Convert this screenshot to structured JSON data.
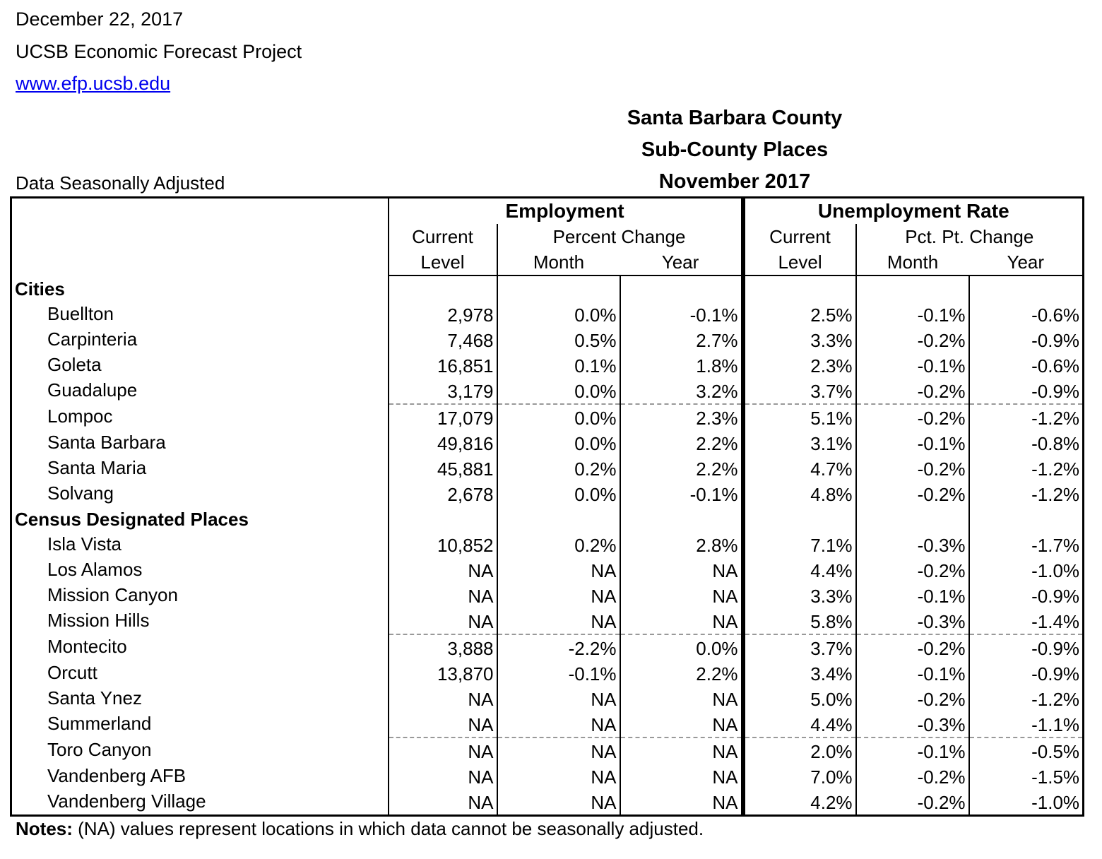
{
  "header": {
    "date": "December 22, 2017",
    "org": "UCSB Economic Forecast Project",
    "url": "www.efp.ucsb.edu",
    "title1": "Santa Barbara County",
    "title2": "Sub-County Places",
    "title3": "November 2017",
    "seasonal": "Data Seasonally Adjusted"
  },
  "columns": {
    "employment": "Employment",
    "unemployment": "Unemployment Rate",
    "current": "Current",
    "level": "Level",
    "percent_change": "Percent Change",
    "pct_pt_change": "Pct. Pt. Change",
    "month": "Month",
    "year": "Year"
  },
  "sections": {
    "cities": "Cities",
    "cdp": "Census Designated Places"
  },
  "cities": [
    {
      "name": "Buellton",
      "emp": "2,978",
      "emp_m": "0.0%",
      "emp_y": "-0.1%",
      "ur": "2.5%",
      "ur_m": "-0.1%",
      "ur_y": "-0.6%"
    },
    {
      "name": "Carpinteria",
      "emp": "7,468",
      "emp_m": "0.5%",
      "emp_y": "2.7%",
      "ur": "3.3%",
      "ur_m": "-0.2%",
      "ur_y": "-0.9%"
    },
    {
      "name": "Goleta",
      "emp": "16,851",
      "emp_m": "0.1%",
      "emp_y": "1.8%",
      "ur": "2.3%",
      "ur_m": "-0.1%",
      "ur_y": "-0.6%"
    },
    {
      "name": "Guadalupe",
      "emp": "3,179",
      "emp_m": "0.0%",
      "emp_y": "3.2%",
      "ur": "3.7%",
      "ur_m": "-0.2%",
      "ur_y": "-0.9%"
    },
    {
      "name": "Lompoc",
      "emp": "17,079",
      "emp_m": "0.0%",
      "emp_y": "2.3%",
      "ur": "5.1%",
      "ur_m": "-0.2%",
      "ur_y": "-1.2%"
    },
    {
      "name": "Santa Barbara",
      "emp": "49,816",
      "emp_m": "0.0%",
      "emp_y": "2.2%",
      "ur": "3.1%",
      "ur_m": "-0.1%",
      "ur_y": "-0.8%"
    },
    {
      "name": "Santa Maria",
      "emp": "45,881",
      "emp_m": "0.2%",
      "emp_y": "2.2%",
      "ur": "4.7%",
      "ur_m": "-0.2%",
      "ur_y": "-1.2%"
    },
    {
      "name": "Solvang",
      "emp": "2,678",
      "emp_m": "0.0%",
      "emp_y": "-0.1%",
      "ur": "4.8%",
      "ur_m": "-0.2%",
      "ur_y": "-1.2%"
    }
  ],
  "cdp": [
    {
      "name": "Isla Vista",
      "emp": "10,852",
      "emp_m": "0.2%",
      "emp_y": "2.8%",
      "ur": "7.1%",
      "ur_m": "-0.3%",
      "ur_y": "-1.7%"
    },
    {
      "name": "Los Alamos",
      "emp": "NA",
      "emp_m": "NA",
      "emp_y": "NA",
      "ur": "4.4%",
      "ur_m": "-0.2%",
      "ur_y": "-1.0%"
    },
    {
      "name": "Mission Canyon",
      "emp": "NA",
      "emp_m": "NA",
      "emp_y": "NA",
      "ur": "3.3%",
      "ur_m": "-0.1%",
      "ur_y": "-0.9%"
    },
    {
      "name": "Mission Hills",
      "emp": "NA",
      "emp_m": "NA",
      "emp_y": "NA",
      "ur": "5.8%",
      "ur_m": "-0.3%",
      "ur_y": "-1.4%"
    },
    {
      "name": "Montecito",
      "emp": "3,888",
      "emp_m": "-2.2%",
      "emp_y": "0.0%",
      "ur": "3.7%",
      "ur_m": "-0.2%",
      "ur_y": "-0.9%"
    },
    {
      "name": "Orcutt",
      "emp": "13,870",
      "emp_m": "-0.1%",
      "emp_y": "2.2%",
      "ur": "3.4%",
      "ur_m": "-0.1%",
      "ur_y": "-0.9%"
    },
    {
      "name": "Santa Ynez",
      "emp": "NA",
      "emp_m": "NA",
      "emp_y": "NA",
      "ur": "5.0%",
      "ur_m": "-0.2%",
      "ur_y": "-1.2%"
    },
    {
      "name": "Summerland",
      "emp": "NA",
      "emp_m": "NA",
      "emp_y": "NA",
      "ur": "4.4%",
      "ur_m": "-0.3%",
      "ur_y": "-1.1%"
    },
    {
      "name": "Toro Canyon",
      "emp": "NA",
      "emp_m": "NA",
      "emp_y": "NA",
      "ur": "2.0%",
      "ur_m": "-0.1%",
      "ur_y": "-0.5%"
    },
    {
      "name": "Vandenberg AFB",
      "emp": "NA",
      "emp_m": "NA",
      "emp_y": "NA",
      "ur": "7.0%",
      "ur_m": "-0.2%",
      "ur_y": "-1.5%"
    },
    {
      "name": "Vandenberg Village",
      "emp": "NA",
      "emp_m": "NA",
      "emp_y": "NA",
      "ur": "4.2%",
      "ur_m": "-0.2%",
      "ur_y": "-1.0%"
    }
  ],
  "notes": {
    "label": "Notes:",
    "text": " (NA) values represent locations in which data cannot be seasonally adjusted."
  }
}
